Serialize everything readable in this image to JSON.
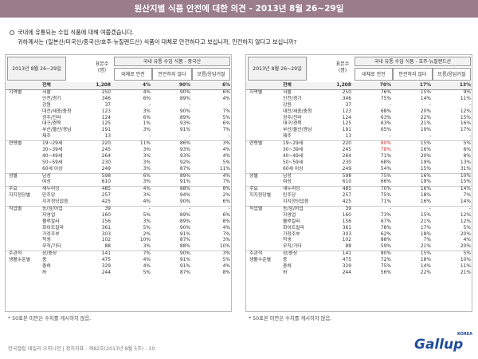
{
  "title": "원산지별 식품 안전에 대한 의견 - 2013년 8월 26~29일",
  "question1": "국내에 유통되는 수입 식품에 대해 여쭙겠습니다.",
  "question2": "귀하께서는 (일본산/미국산/중국산/호주·뉴질랜드산) 식품이 대체로 안전하다고 보십니까, 안전하지 않다고 보십니까?",
  "note": "* 50표본 미만은 수치를 게시하지 않음.",
  "footer": "한국갤럽 데일리 오피니언 | 정치지표 - 제82호(2013년 8월 5주) - 10",
  "logo": "Gallup",
  "logo_sub": "KOREA",
  "left": {
    "date": "2013년 8월 26~29일",
    "n_label": "표본수 (명)",
    "group_label": "국내 유통 수입 식품 - 중국산",
    "col1": "대체로 안전",
    "col2": "안전하지 않다",
    "col3": "모름/응답거절",
    "rows": [
      {
        "g": "",
        "s": "전체",
        "n": "1,208",
        "a": "4%",
        "b": "90%",
        "c": "6%",
        "total": true
      },
      {
        "g": "지역별",
        "s": "서울",
        "n": "250",
        "a": "4%",
        "b": "90%",
        "c": "6%"
      },
      {
        "g": "",
        "s": "인천/경기",
        "n": "346",
        "a": "6%",
        "b": "89%",
        "c": "4%"
      },
      {
        "g": "",
        "s": "강원",
        "n": "37",
        "a": "-",
        "b": "-",
        "c": "-"
      },
      {
        "g": "",
        "s": "대전/세종/충청",
        "n": "123",
        "a": "3%",
        "b": "90%",
        "c": "7%"
      },
      {
        "g": "",
        "s": "광주/전라",
        "n": "124",
        "a": "6%",
        "b": "89%",
        "c": "5%"
      },
      {
        "g": "",
        "s": "대구/경북",
        "n": "125",
        "a": "1%",
        "b": "93%",
        "c": "6%"
      },
      {
        "g": "",
        "s": "부산/울산/경남",
        "n": "191",
        "a": "3%",
        "b": "91%",
        "c": "7%"
      },
      {
        "g": "",
        "s": "제주",
        "n": "13",
        "a": "-",
        "b": "-",
        "c": "-"
      },
      {
        "g": "연령별",
        "s": "19~29세",
        "n": "220",
        "a": "11%",
        "b": "86%",
        "c": "3%",
        "sep": true
      },
      {
        "g": "",
        "s": "30~39세",
        "n": "245",
        "a": "3%",
        "b": "93%",
        "c": "4%"
      },
      {
        "g": "",
        "s": "40~49세",
        "n": "264",
        "a": "3%",
        "b": "93%",
        "c": "4%"
      },
      {
        "g": "",
        "s": "50~59세",
        "n": "230",
        "a": "3%",
        "b": "92%",
        "c": "5%"
      },
      {
        "g": "",
        "s": "60세 이상",
        "n": "249",
        "a": "3%",
        "b": "87%",
        "c": "11%"
      },
      {
        "g": "성별",
        "s": "남성",
        "n": "598",
        "a": "6%",
        "b": "89%",
        "c": "4%",
        "sep": true
      },
      {
        "g": "",
        "s": "여성",
        "n": "610",
        "a": "3%",
        "b": "91%",
        "c": "7%"
      },
      {
        "g": "주요",
        "s": "새누리당",
        "n": "485",
        "a": "4%",
        "b": "88%",
        "c": "8%",
        "sep": true
      },
      {
        "g": "지지정당별",
        "s": "민주당",
        "n": "257",
        "a": "3%",
        "b": "94%",
        "c": "2%"
      },
      {
        "g": "",
        "s": "지지정당없음",
        "n": "425",
        "a": "4%",
        "b": "90%",
        "c": "6%"
      },
      {
        "g": "직업별",
        "s": "농/임/어업",
        "n": "39",
        "a": "-",
        "b": "-",
        "c": "-",
        "sep": true
      },
      {
        "g": "",
        "s": "자영업",
        "n": "160",
        "a": "5%",
        "b": "89%",
        "c": "6%"
      },
      {
        "g": "",
        "s": "블루칼라",
        "n": "156",
        "a": "3%",
        "b": "89%",
        "c": "8%"
      },
      {
        "g": "",
        "s": "화이트칼라",
        "n": "361",
        "a": "5%",
        "b": "90%",
        "c": "4%"
      },
      {
        "g": "",
        "s": "가정주부",
        "n": "303",
        "a": "2%",
        "b": "91%",
        "c": "7%"
      },
      {
        "g": "",
        "s": "학생",
        "n": "102",
        "a": "10%",
        "b": "87%",
        "c": "3%"
      },
      {
        "g": "",
        "s": "무직/기타",
        "n": "88",
        "a": "3%",
        "b": "88%",
        "c": "10%"
      },
      {
        "g": "주관적",
        "s": "상/중상",
        "n": "141",
        "a": "7%",
        "b": "90%",
        "c": "3%",
        "sep": true
      },
      {
        "g": "생활수준별",
        "s": "중",
        "n": "475",
        "a": "4%",
        "b": "91%",
        "c": "5%"
      },
      {
        "g": "",
        "s": "중하",
        "n": "329",
        "a": "4%",
        "b": "91%",
        "c": "4%"
      },
      {
        "g": "",
        "s": "하",
        "n": "244",
        "a": "5%",
        "b": "87%",
        "c": "8%"
      }
    ]
  },
  "right": {
    "date": "2013년 8월 26~29일",
    "n_label": "표본수 (명)",
    "group_label": "국내 유통 수입 식품 - 호주·뉴질랜드산",
    "col1": "대체로 안전",
    "col2": "안전하지 않다",
    "col3": "모름/응답거절",
    "rows": [
      {
        "g": "",
        "s": "전체",
        "n": "1,208",
        "a": "70%",
        "b": "17%",
        "c": "13%",
        "total": true
      },
      {
        "g": "지역별",
        "s": "서울",
        "n": "250",
        "a": "76%",
        "b": "15%",
        "c": "9%"
      },
      {
        "g": "",
        "s": "인천/경기",
        "n": "346",
        "a": "75%",
        "b": "14%",
        "c": "11%"
      },
      {
        "g": "",
        "s": "강원",
        "n": "37",
        "a": "-",
        "b": "-",
        "c": "-"
      },
      {
        "g": "",
        "s": "대전/세종/충청",
        "n": "123",
        "a": "68%",
        "b": "20%",
        "c": "12%"
      },
      {
        "g": "",
        "s": "광주/전라",
        "n": "124",
        "a": "63%",
        "b": "22%",
        "c": "15%"
      },
      {
        "g": "",
        "s": "대구/경북",
        "n": "125",
        "a": "63%",
        "b": "21%",
        "c": "16%"
      },
      {
        "g": "",
        "s": "부산/울산/경남",
        "n": "191",
        "a": "65%",
        "b": "19%",
        "c": "17%"
      },
      {
        "g": "",
        "s": "제주",
        "n": "13",
        "a": "-",
        "b": "-",
        "c": "-"
      },
      {
        "g": "연령별",
        "s": "19~29세",
        "n": "220",
        "a": "80%",
        "b": "15%",
        "c": "5%",
        "sep": true,
        "hl": true
      },
      {
        "g": "",
        "s": "30~39세",
        "n": "245",
        "a": "78%",
        "b": "16%",
        "c": "6%",
        "hl": true
      },
      {
        "g": "",
        "s": "40~49세",
        "n": "264",
        "a": "71%",
        "b": "20%",
        "c": "8%"
      },
      {
        "g": "",
        "s": "50~59세",
        "n": "230",
        "a": "68%",
        "b": "19%",
        "c": "13%"
      },
      {
        "g": "",
        "s": "60세 이상",
        "n": "249",
        "a": "54%",
        "b": "15%",
        "c": "31%"
      },
      {
        "g": "성별",
        "s": "남성",
        "n": "598",
        "a": "75%",
        "b": "16%",
        "c": "10%",
        "sep": true
      },
      {
        "g": "",
        "s": "여성",
        "n": "610",
        "a": "66%",
        "b": "19%",
        "c": "15%"
      },
      {
        "g": "주요",
        "s": "새누리당",
        "n": "485",
        "a": "70%",
        "b": "16%",
        "c": "14%",
        "sep": true
      },
      {
        "g": "지지정당별",
        "s": "민주당",
        "n": "257",
        "a": "75%",
        "b": "18%",
        "c": "7%"
      },
      {
        "g": "",
        "s": "지지정당없음",
        "n": "425",
        "a": "71%",
        "b": "16%",
        "c": "14%"
      },
      {
        "g": "직업별",
        "s": "농/임/어업",
        "n": "39",
        "a": "-",
        "b": "-",
        "c": "-",
        "sep": true
      },
      {
        "g": "",
        "s": "자영업",
        "n": "160",
        "a": "73%",
        "b": "15%",
        "c": "12%"
      },
      {
        "g": "",
        "s": "블루칼라",
        "n": "156",
        "a": "67%",
        "b": "21%",
        "c": "12%"
      },
      {
        "g": "",
        "s": "화이트칼라",
        "n": "361",
        "a": "78%",
        "b": "17%",
        "c": "5%"
      },
      {
        "g": "",
        "s": "가정주부",
        "n": "303",
        "a": "62%",
        "b": "18%",
        "c": "20%"
      },
      {
        "g": "",
        "s": "학생",
        "n": "102",
        "a": "88%",
        "b": "7%",
        "c": "4%"
      },
      {
        "g": "",
        "s": "무직/기타",
        "n": "88",
        "a": "59%",
        "b": "21%",
        "c": "20%"
      },
      {
        "g": "주관적",
        "s": "상/중상",
        "n": "141",
        "a": "80%",
        "b": "15%",
        "c": "5%",
        "sep": true
      },
      {
        "g": "생활수준별",
        "s": "중",
        "n": "475",
        "a": "72%",
        "b": "18%",
        "c": "10%"
      },
      {
        "g": "",
        "s": "중하",
        "n": "329",
        "a": "75%",
        "b": "14%",
        "c": "11%"
      },
      {
        "g": "",
        "s": "하",
        "n": "244",
        "a": "56%",
        "b": "22%",
        "c": "21%"
      }
    ]
  }
}
